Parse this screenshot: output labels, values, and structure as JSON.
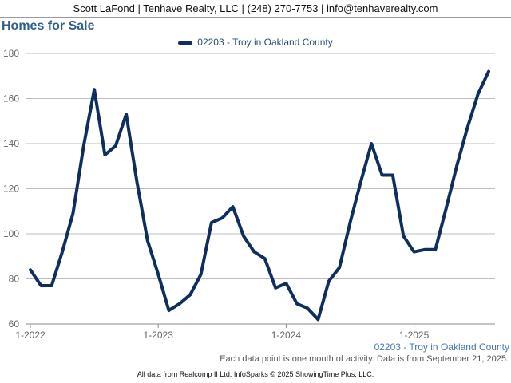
{
  "header": {
    "agent_line": "Scott LaFond | Tenhave Realty, LLC | (248) 270-7753 | info@tenhaverealty.com"
  },
  "footer": {
    "series_label": "02203 - Troy in Oakland County",
    "note": "Each data point is one month of activity. Data is from September 21, 2025.",
    "credit": "All data from Realcomp II Ltd. InfoSparks © 2025 ShowingTime Plus, LLC."
  },
  "colors": {
    "series": "#0e2f5e",
    "grid": "#bdbdbd",
    "title": "#2f5f8f"
  },
  "chart_data": {
    "type": "line",
    "title": "Homes for Sale",
    "xlabel": "",
    "ylabel": "",
    "ylim": [
      60,
      180
    ],
    "yticks": [
      60,
      80,
      100,
      120,
      140,
      160,
      180
    ],
    "xticks": [
      "1-2022",
      "1-2023",
      "1-2024",
      "1-2025"
    ],
    "grid": true,
    "legend_position": "top-center",
    "x": [
      "2022-01",
      "2022-02",
      "2022-03",
      "2022-04",
      "2022-05",
      "2022-06",
      "2022-07",
      "2022-08",
      "2022-09",
      "2022-10",
      "2022-11",
      "2022-12",
      "2023-01",
      "2023-02",
      "2023-03",
      "2023-04",
      "2023-05",
      "2023-06",
      "2023-07",
      "2023-08",
      "2023-09",
      "2023-10",
      "2023-11",
      "2023-12",
      "2024-01",
      "2024-02",
      "2024-03",
      "2024-04",
      "2024-05",
      "2024-06",
      "2024-07",
      "2024-08",
      "2024-09",
      "2024-10",
      "2024-11",
      "2024-12",
      "2025-01",
      "2025-02",
      "2025-03",
      "2025-04",
      "2025-05",
      "2025-06",
      "2025-07",
      "2025-08"
    ],
    "series": [
      {
        "name": "02203 - Troy in Oakland County",
        "values": [
          84,
          77,
          77,
          92,
          109,
          139,
          164,
          135,
          139,
          153,
          123,
          97,
          82,
          66,
          69,
          73,
          82,
          105,
          107,
          112,
          99,
          92,
          89,
          76,
          78,
          69,
          67,
          62,
          79,
          85,
          105,
          123,
          140,
          126,
          126,
          99,
          92,
          93,
          93,
          111,
          130,
          147,
          162,
          172
        ]
      }
    ]
  }
}
